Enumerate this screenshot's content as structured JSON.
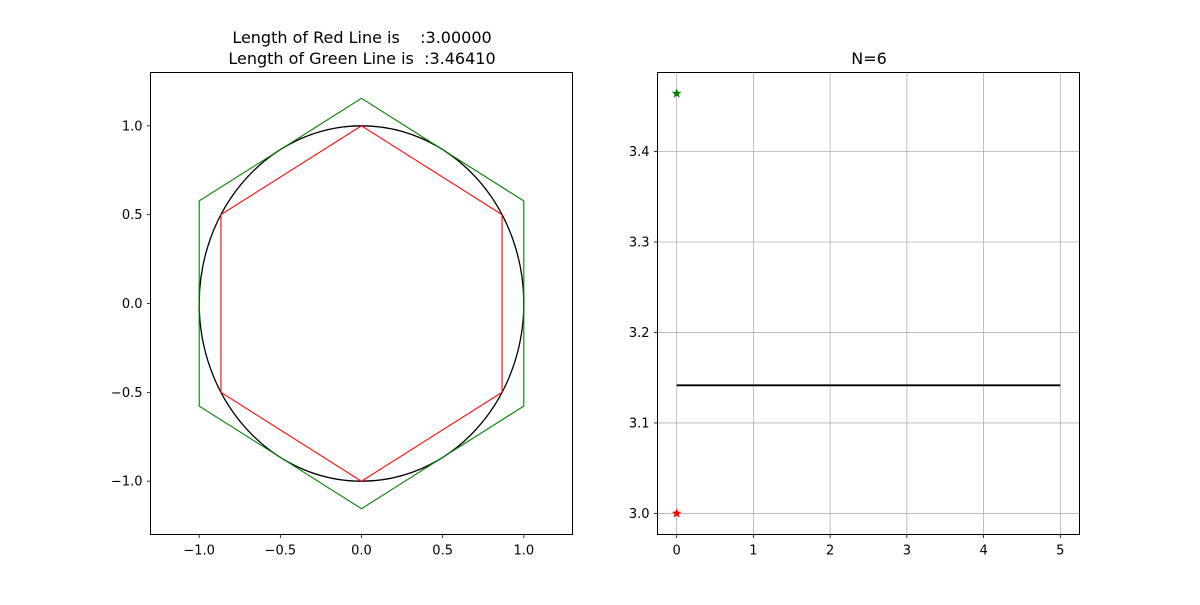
{
  "figure": {
    "left_title_line1": "Length of Red Line is    :3.00000",
    "left_title_line2": "Length of Green Line is  :3.46410",
    "right_title": "N=6"
  },
  "colors": {
    "red": "#ff0000",
    "green": "#008000",
    "black": "#000000",
    "grid": "#b0b0b0"
  },
  "chart_data": [
    {
      "type": "line",
      "title": "Length of Red Line is    :3.00000\nLength of Green Line is  :3.46410",
      "xlim": [
        -1.3,
        1.3
      ],
      "ylim": [
        -1.3,
        1.3
      ],
      "xticks": [
        -1.0,
        -0.5,
        0.0,
        0.5,
        1.0
      ],
      "yticks": [
        -1.0,
        -0.5,
        0.0,
        0.5,
        1.0
      ],
      "xtick_labels": [
        "−1.0",
        "−0.5",
        "0.0",
        "0.5",
        "1.0"
      ],
      "ytick_labels": [
        "−1.0",
        "−0.5",
        "0.0",
        "0.5",
        "1.0"
      ],
      "grid": false,
      "series": [
        {
          "shape": "circle",
          "color": "#000000",
          "center": [
            0,
            0
          ],
          "radius": 1.0
        },
        {
          "shape": "polygon",
          "color": "#ff0000",
          "x": [
            0.0,
            0.866,
            0.866,
            0.0,
            -0.866,
            -0.866,
            0.0
          ],
          "y": [
            1.0,
            0.5,
            -0.5,
            -1.0,
            -0.5,
            0.5,
            1.0
          ]
        },
        {
          "shape": "polygon",
          "color": "#008000",
          "x": [
            0.0,
            1.0,
            1.0,
            0.0,
            -1.0,
            -1.0,
            0.0
          ],
          "y": [
            1.1547,
            0.57735,
            -0.57735,
            -1.1547,
            -0.57735,
            0.57735,
            1.1547
          ]
        }
      ]
    },
    {
      "type": "line",
      "title": "N=6",
      "xlim": [
        -0.25,
        5.25
      ],
      "ylim": [
        2.9767,
        3.4873
      ],
      "xticks": [
        0,
        1,
        2,
        3,
        4,
        5
      ],
      "yticks": [
        3.0,
        3.1,
        3.2,
        3.3,
        3.4
      ],
      "xtick_labels": [
        "0",
        "1",
        "2",
        "3",
        "4",
        "5"
      ],
      "ytick_labels": [
        "3.0",
        "3.1",
        "3.2",
        "3.3",
        "3.4"
      ],
      "grid": true,
      "series": [
        {
          "shape": "line",
          "color": "#000000",
          "x": [
            0,
            5
          ],
          "y": [
            3.14159,
            3.14159
          ]
        },
        {
          "shape": "marker",
          "marker": "star",
          "color": "#008000",
          "x": [
            0
          ],
          "y": [
            3.4641
          ]
        },
        {
          "shape": "marker",
          "marker": "star",
          "color": "#ff0000",
          "x": [
            0
          ],
          "y": [
            3.0
          ]
        }
      ]
    }
  ]
}
